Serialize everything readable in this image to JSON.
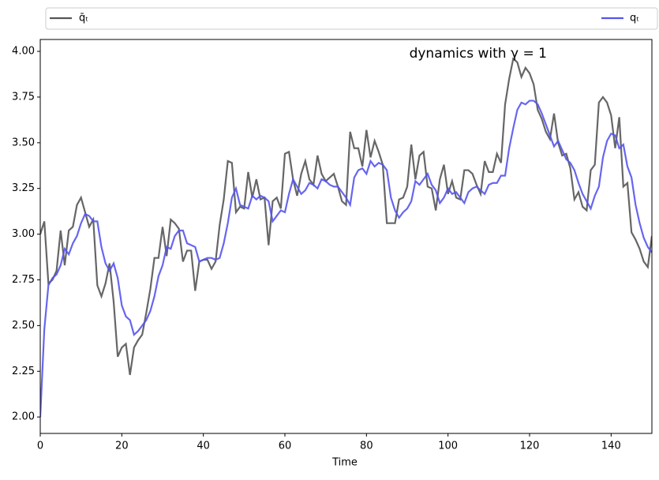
{
  "chart_data": {
    "type": "line",
    "annotation": "dynamics with γ = 1",
    "x_label": "Time",
    "x": [
      0,
      1,
      2,
      3,
      4,
      5,
      6,
      7,
      8,
      9,
      10,
      11,
      12,
      13,
      14,
      15,
      16,
      17,
      18,
      19,
      20,
      21,
      22,
      23,
      24,
      25,
      26,
      27,
      28,
      29,
      30,
      31,
      32,
      33,
      34,
      35,
      36,
      37,
      38,
      39,
      40,
      41,
      42,
      43,
      44,
      45,
      46,
      47,
      48,
      49,
      50,
      51,
      52,
      53,
      54,
      55,
      56,
      57,
      58,
      59,
      60,
      61,
      62,
      63,
      64,
      65,
      66,
      67,
      68,
      69,
      70,
      71,
      72,
      73,
      74,
      75,
      76,
      77,
      78,
      79,
      80,
      81,
      82,
      83,
      84,
      85,
      86,
      87,
      88,
      89,
      90,
      91,
      92,
      93,
      94,
      95,
      96,
      97,
      98,
      99,
      100,
      101,
      102,
      103,
      104,
      105,
      106,
      107,
      108,
      109,
      110,
      111,
      112,
      113,
      114,
      115,
      116,
      117,
      118,
      119,
      120,
      121,
      122,
      123,
      124,
      125,
      126,
      127,
      128,
      129,
      130,
      131,
      132,
      133,
      134,
      135,
      136,
      137,
      138,
      139,
      140,
      141,
      142,
      143,
      144,
      145,
      146,
      147,
      148,
      149,
      150
    ],
    "series": [
      {
        "name": "q̄ₜ",
        "color": "#555555",
        "values": [
          3.0,
          3.07,
          2.73,
          2.75,
          2.8,
          3.02,
          2.83,
          3.02,
          3.04,
          3.16,
          3.2,
          3.12,
          3.04,
          3.08,
          2.72,
          2.66,
          2.73,
          2.84,
          2.63,
          2.33,
          2.38,
          2.4,
          2.23,
          2.38,
          2.42,
          2.45,
          2.57,
          2.7,
          2.87,
          2.87,
          3.04,
          2.88,
          3.08,
          3.06,
          3.03,
          2.85,
          2.91,
          2.91,
          2.69,
          2.85,
          2.86,
          2.86,
          2.81,
          2.85,
          3.05,
          3.19,
          3.4,
          3.39,
          3.12,
          3.15,
          3.14,
          3.34,
          3.2,
          3.3,
          3.19,
          3.2,
          2.94,
          3.18,
          3.2,
          3.14,
          3.44,
          3.45,
          3.3,
          3.21,
          3.33,
          3.4,
          3.3,
          3.27,
          3.43,
          3.33,
          3.29,
          3.31,
          3.33,
          3.26,
          3.18,
          3.16,
          3.56,
          3.47,
          3.47,
          3.37,
          3.57,
          3.42,
          3.51,
          3.45,
          3.38,
          3.06,
          3.06,
          3.06,
          3.19,
          3.2,
          3.26,
          3.49,
          3.3,
          3.43,
          3.45,
          3.26,
          3.25,
          3.13,
          3.3,
          3.38,
          3.22,
          3.29,
          3.2,
          3.19,
          3.35,
          3.35,
          3.33,
          3.27,
          3.22,
          3.4,
          3.34,
          3.34,
          3.44,
          3.39,
          3.71,
          3.85,
          3.96,
          3.94,
          3.86,
          3.91,
          3.88,
          3.82,
          3.68,
          3.63,
          3.56,
          3.52,
          3.66,
          3.5,
          3.43,
          3.44,
          3.36,
          3.19,
          3.23,
          3.15,
          3.13,
          3.35,
          3.38,
          3.72,
          3.75,
          3.72,
          3.65,
          3.47,
          3.64,
          3.26,
          3.28,
          3.01,
          2.97,
          2.92,
          2.85,
          2.82,
          2.99
        ]
      },
      {
        "name": "qₜ",
        "color": "#5555ee",
        "values": [
          2.0,
          2.48,
          2.72,
          2.76,
          2.78,
          2.83,
          2.92,
          2.89,
          2.95,
          2.99,
          3.06,
          3.11,
          3.1,
          3.07,
          3.07,
          2.93,
          2.84,
          2.8,
          2.84,
          2.76,
          2.61,
          2.55,
          2.53,
          2.45,
          2.47,
          2.5,
          2.53,
          2.58,
          2.66,
          2.77,
          2.83,
          2.93,
          2.92,
          2.99,
          3.02,
          3.02,
          2.95,
          2.94,
          2.93,
          2.85,
          2.86,
          2.87,
          2.87,
          2.86,
          2.87,
          2.95,
          3.06,
          3.2,
          3.25,
          3.16,
          3.15,
          3.14,
          3.21,
          3.19,
          3.21,
          3.2,
          3.18,
          3.07,
          3.1,
          3.13,
          3.12,
          3.22,
          3.3,
          3.26,
          3.22,
          3.24,
          3.28,
          3.27,
          3.25,
          3.3,
          3.29,
          3.27,
          3.26,
          3.26,
          3.23,
          3.2,
          3.16,
          3.31,
          3.35,
          3.36,
          3.33,
          3.4,
          3.37,
          3.39,
          3.38,
          3.35,
          3.2,
          3.13,
          3.09,
          3.12,
          3.14,
          3.18,
          3.29,
          3.27,
          3.3,
          3.33,
          3.27,
          3.24,
          3.17,
          3.2,
          3.25,
          3.22,
          3.23,
          3.2,
          3.17,
          3.23,
          3.25,
          3.26,
          3.24,
          3.22,
          3.27,
          3.28,
          3.28,
          3.32,
          3.32,
          3.47,
          3.58,
          3.68,
          3.72,
          3.71,
          3.73,
          3.73,
          3.71,
          3.66,
          3.6,
          3.54,
          3.48,
          3.51,
          3.46,
          3.41,
          3.39,
          3.35,
          3.28,
          3.22,
          3.18,
          3.14,
          3.21,
          3.26,
          3.42,
          3.51,
          3.55,
          3.54,
          3.47,
          3.49,
          3.37,
          3.31,
          3.16,
          3.06,
          2.98,
          2.93,
          2.9
        ]
      }
    ],
    "xlim": [
      0,
      150
    ],
    "xticks": [
      0,
      20,
      40,
      60,
      80,
      100,
      120,
      140
    ],
    "ylim": [
      1.91,
      4.065
    ],
    "yticks": [
      {
        "value": 2,
        "label": "2.00"
      },
      {
        "value": 2.25,
        "label": "2.25"
      },
      {
        "value": 2.5,
        "label": "2.50"
      },
      {
        "value": 2.75,
        "label": "2.75"
      },
      {
        "value": 3,
        "label": "3.00"
      },
      {
        "value": 3.25,
        "label": "3.25"
      },
      {
        "value": 3.5,
        "label": "3.50"
      },
      {
        "value": 3.75,
        "label": "3.75"
      },
      {
        "value": 4,
        "label": "4.00"
      }
    ],
    "grid": false,
    "legend": "top"
  }
}
